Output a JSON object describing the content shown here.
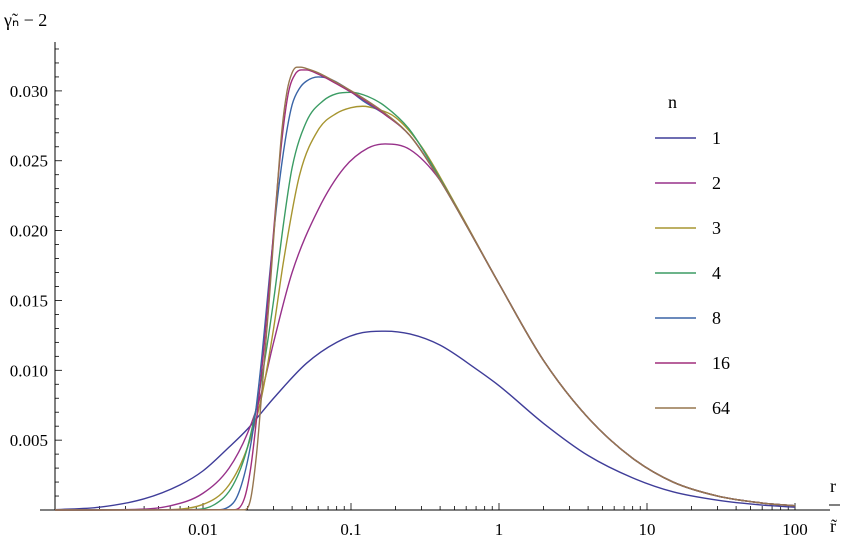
{
  "chart_data": {
    "type": "line",
    "ylabel": "γ̃ₙ − 2",
    "xlabel_num": "r",
    "xlabel_den": "r̃",
    "x_scale": "log",
    "xlim": [
      0.001,
      120
    ],
    "ylim": [
      0,
      0.0335
    ],
    "x_ticks": [
      {
        "value": 0.01,
        "label": "0.01"
      },
      {
        "value": 0.1,
        "label": "0.1"
      },
      {
        "value": 1,
        "label": "1"
      },
      {
        "value": 10,
        "label": "10"
      },
      {
        "value": 100,
        "label": "100"
      }
    ],
    "y_ticks": [
      {
        "value": 0.005,
        "label": "0.005"
      },
      {
        "value": 0.01,
        "label": "0.010"
      },
      {
        "value": 0.015,
        "label": "0.015"
      },
      {
        "value": 0.02,
        "label": "0.020"
      },
      {
        "value": 0.025,
        "label": "0.025"
      },
      {
        "value": 0.03,
        "label": "0.030"
      }
    ],
    "grid": false,
    "legend_title": "n",
    "legend_position": "right",
    "series": [
      {
        "name": "1",
        "color": "#3f3d99",
        "x": [
          0.001,
          0.002,
          0.004,
          0.007,
          0.01,
          0.015,
          0.02,
          0.03,
          0.05,
          0.08,
          0.12,
          0.17,
          0.25,
          0.4,
          0.7,
          1,
          2,
          4,
          8,
          15,
          30,
          60,
          100
        ],
        "y": [
          2e-05,
          0.0002,
          0.0008,
          0.0018,
          0.0028,
          0.0045,
          0.0058,
          0.008,
          0.0105,
          0.012,
          0.0127,
          0.0128,
          0.0126,
          0.0118,
          0.0101,
          0.0089,
          0.0062,
          0.0039,
          0.0023,
          0.0013,
          0.0007,
          0.00035,
          0.0002
        ]
      },
      {
        "name": "2",
        "color": "#97318a",
        "x": [
          0.001,
          0.003,
          0.006,
          0.01,
          0.015,
          0.02,
          0.025,
          0.03,
          0.04,
          0.06,
          0.09,
          0.13,
          0.17,
          0.25,
          0.4,
          0.6,
          1,
          2,
          4,
          8,
          15,
          30,
          60,
          100
        ],
        "y": [
          0,
          3e-05,
          0.0003,
          0.0012,
          0.003,
          0.0055,
          0.0085,
          0.012,
          0.017,
          0.0215,
          0.0245,
          0.0259,
          0.0262,
          0.0258,
          0.0236,
          0.0204,
          0.0162,
          0.0107,
          0.0066,
          0.0037,
          0.002,
          0.001,
          0.0005,
          0.0003
        ]
      },
      {
        "name": "3",
        "color": "#a79530",
        "x": [
          0.001,
          0.005,
          0.01,
          0.015,
          0.02,
          0.025,
          0.03,
          0.035,
          0.045,
          0.06,
          0.08,
          0.1,
          0.12,
          0.15,
          0.2,
          0.3,
          0.5,
          1,
          2,
          4,
          8,
          15,
          30,
          60,
          100
        ],
        "y": [
          0,
          1e-05,
          0.0004,
          0.0018,
          0.0045,
          0.0082,
          0.013,
          0.0178,
          0.024,
          0.0272,
          0.0284,
          0.0288,
          0.0289,
          0.0287,
          0.0281,
          0.026,
          0.022,
          0.0162,
          0.0107,
          0.0066,
          0.0037,
          0.002,
          0.001,
          0.0005,
          0.0003
        ]
      },
      {
        "name": "4",
        "color": "#3b9c64",
        "x": [
          0.001,
          0.008,
          0.012,
          0.016,
          0.02,
          0.025,
          0.03,
          0.035,
          0.04,
          0.05,
          0.065,
          0.08,
          0.1,
          0.13,
          0.17,
          0.25,
          0.4,
          0.6,
          1,
          2,
          4,
          8,
          15,
          30,
          60,
          100
        ],
        "y": [
          0,
          2e-05,
          0.0004,
          0.0018,
          0.0045,
          0.0095,
          0.015,
          0.0205,
          0.0245,
          0.0278,
          0.0293,
          0.0298,
          0.0299,
          0.0296,
          0.0289,
          0.0272,
          0.0237,
          0.0204,
          0.0162,
          0.0107,
          0.0066,
          0.0037,
          0.002,
          0.001,
          0.0005,
          0.0003
        ]
      },
      {
        "name": "8",
        "color": "#3a64a6",
        "x": [
          0.001,
          0.012,
          0.016,
          0.019,
          0.022,
          0.025,
          0.028,
          0.032,
          0.036,
          0.04,
          0.045,
          0.05,
          0.06,
          0.07,
          0.09,
          0.12,
          0.17,
          0.25,
          0.4,
          0.6,
          1,
          2,
          4,
          8,
          15,
          30,
          60,
          100
        ],
        "y": [
          0,
          1e-05,
          0.0005,
          0.0025,
          0.006,
          0.011,
          0.0165,
          0.0225,
          0.0265,
          0.029,
          0.0302,
          0.0307,
          0.031,
          0.0309,
          0.0303,
          0.0293,
          0.0283,
          0.0268,
          0.0236,
          0.0204,
          0.0162,
          0.0107,
          0.0066,
          0.0037,
          0.002,
          0.001,
          0.0005,
          0.0003
        ]
      },
      {
        "name": "16",
        "color": "#a12e7c",
        "x": [
          0.001,
          0.016,
          0.019,
          0.021,
          0.023,
          0.026,
          0.029,
          0.032,
          0.035,
          0.038,
          0.042,
          0.046,
          0.05,
          0.06,
          0.08,
          0.12,
          0.17,
          0.25,
          0.4,
          0.6,
          1,
          2,
          4,
          8,
          15,
          30,
          60,
          100
        ],
        "y": [
          0,
          1e-05,
          0.0008,
          0.003,
          0.0065,
          0.012,
          0.018,
          0.0235,
          0.0275,
          0.03,
          0.0312,
          0.0315,
          0.0315,
          0.0312,
          0.0305,
          0.0294,
          0.0283,
          0.0268,
          0.0236,
          0.0204,
          0.0162,
          0.0107,
          0.0066,
          0.0037,
          0.002,
          0.001,
          0.0005,
          0.0003
        ]
      },
      {
        "name": "64",
        "color": "#96764f",
        "x": [
          0.001,
          0.019,
          0.021,
          0.023,
          0.025,
          0.028,
          0.031,
          0.034,
          0.037,
          0.04,
          0.043,
          0.046,
          0.05,
          0.06,
          0.08,
          0.12,
          0.17,
          0.25,
          0.4,
          0.6,
          1,
          2,
          4,
          8,
          15,
          30,
          60,
          100
        ],
        "y": [
          0,
          1e-05,
          0.0008,
          0.004,
          0.0085,
          0.015,
          0.0215,
          0.027,
          0.03,
          0.0313,
          0.0317,
          0.0317,
          0.0316,
          0.0313,
          0.0306,
          0.0295,
          0.0284,
          0.0268,
          0.0236,
          0.0204,
          0.0162,
          0.0107,
          0.0066,
          0.0037,
          0.002,
          0.001,
          0.0005,
          0.0003
        ]
      }
    ]
  }
}
